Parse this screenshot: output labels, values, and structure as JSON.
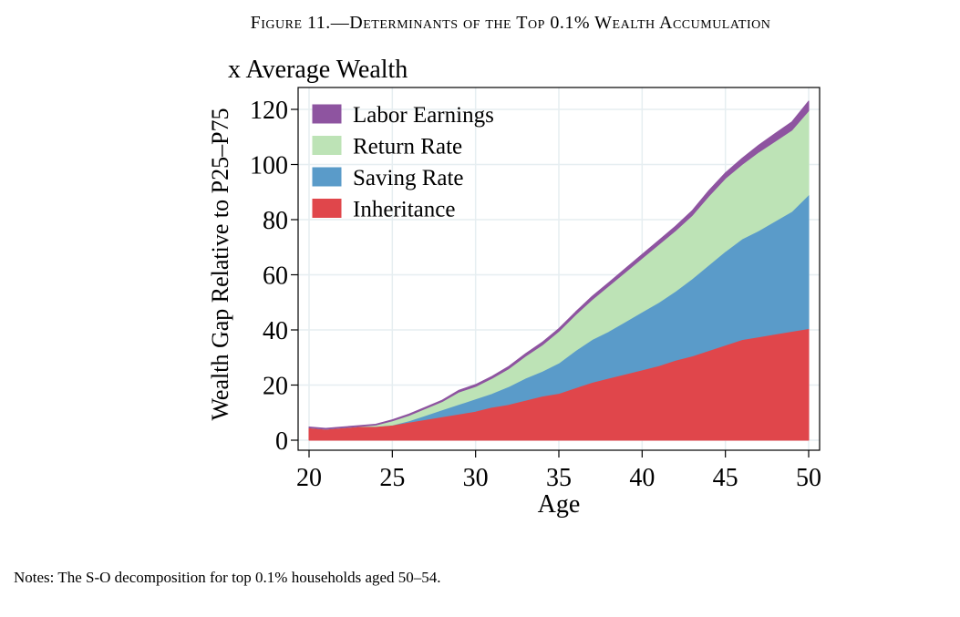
{
  "figure_title": "Figure 11.—Determinants of the Top 0.1% Wealth Accumulation",
  "notes": "Notes: The S-O decomposition for top 0.1% households aged 50–54.",
  "chart_data": {
    "type": "area",
    "stacked": true,
    "subtitle": "x Average Wealth",
    "xlabel": "Age",
    "ylabel": "Wealth Gap Relative to P25–P75",
    "xlim": [
      20,
      50
    ],
    "ylim": [
      0,
      125
    ],
    "xticks": [
      20,
      25,
      30,
      35,
      40,
      45,
      50
    ],
    "yticks": [
      0,
      20,
      40,
      60,
      80,
      100,
      120
    ],
    "grid": true,
    "legend_position": "top-left",
    "x": [
      20,
      21,
      22,
      23,
      24,
      25,
      26,
      27,
      28,
      29,
      30,
      31,
      32,
      33,
      34,
      35,
      36,
      37,
      38,
      39,
      40,
      41,
      42,
      43,
      44,
      45,
      46,
      47,
      48,
      49,
      50
    ],
    "series": [
      {
        "name": "Inheritance",
        "color": "#e0464b",
        "values": [
          4.5,
          4,
          4.5,
          5,
          5,
          5.5,
          6.5,
          7.5,
          8.5,
          9.5,
          10.5,
          12,
          13,
          14.5,
          16,
          17,
          19,
          21,
          22.5,
          24,
          25.5,
          27,
          29,
          30.5,
          32.5,
          34.5,
          36.5,
          37.5,
          38.5,
          39.5,
          40.5
        ]
      },
      {
        "name": "Saving Rate",
        "color": "#5a9bc9",
        "values": [
          0,
          0,
          0,
          0,
          0,
          0,
          0.5,
          1.5,
          2.5,
          3.5,
          4.5,
          5,
          6.5,
          8,
          9,
          11,
          13.5,
          15.5,
          17,
          19,
          21,
          23,
          25,
          28,
          31,
          34,
          36.5,
          38.5,
          41,
          43.5,
          48.5
        ]
      },
      {
        "name": "Return Rate",
        "color": "#bde3b6",
        "values": [
          0,
          0,
          0,
          0,
          0.5,
          1.5,
          2,
          2.5,
          3,
          4.5,
          4.5,
          5.5,
          6.5,
          8,
          9.5,
          11.5,
          13,
          14.5,
          16.5,
          18,
          19.5,
          21,
          22,
          23,
          25,
          26.5,
          27,
          28.5,
          29,
          29.5,
          30.5
        ]
      },
      {
        "name": "Labor Earnings",
        "color": "#8e54a0",
        "values": [
          0.3,
          0.3,
          0.3,
          0.3,
          0.3,
          0.4,
          0.5,
          0.5,
          0.5,
          0.6,
          0.7,
          0.7,
          0.8,
          0.9,
          1,
          1,
          1,
          1.2,
          1.2,
          1.3,
          1.4,
          1.5,
          1.6,
          1.7,
          2,
          2,
          2.2,
          2.5,
          2.8,
          3,
          3.5
        ]
      }
    ]
  }
}
